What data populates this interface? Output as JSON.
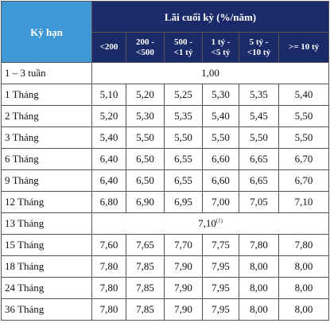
{
  "header": {
    "term": "Kỳ hạn",
    "rate_title": "Lãi cuối kỳ (%/năm)",
    "tiers": [
      "<200",
      "200 -\n<500",
      "500 -\n<1 tỷ",
      "1 tỷ -\n<5 tỷ",
      "5 tỷ -\n<10 tỷ",
      ">= 10 tỷ"
    ]
  },
  "rows": [
    {
      "term": "1 – 3 tuần",
      "value": "1,00"
    },
    {
      "term": "1 Tháng",
      "values": [
        "5,10",
        "5,20",
        "5,25",
        "5,30",
        "5,35",
        "5,40"
      ]
    },
    {
      "term": "2 Tháng",
      "values": [
        "5,20",
        "5,30",
        "5,35",
        "5,40",
        "5,45",
        "5,50"
      ]
    },
    {
      "term": "3 Tháng",
      "values": [
        "5,40",
        "5,50",
        "5,50",
        "5,50",
        "5,50",
        "5,50"
      ]
    },
    {
      "term": "6 Tháng",
      "values": [
        "6,40",
        "6,50",
        "6,55",
        "6,60",
        "6,65",
        "6,70"
      ]
    },
    {
      "term": "9 Tháng",
      "values": [
        "6,40",
        "6,50",
        "6,55",
        "6,60",
        "6,65",
        "6,70"
      ]
    },
    {
      "term": "12 Tháng",
      "values": [
        "6,80",
        "6,90",
        "6,95",
        "7,00",
        "7,05",
        "7,10"
      ]
    },
    {
      "term": "13 Tháng",
      "value": "7,10",
      "note": "(1)"
    },
    {
      "term": "15 Tháng",
      "values": [
        "7,60",
        "7,65",
        "7,70",
        "7,75",
        "7,80",
        "7,80"
      ]
    },
    {
      "term": "18 Tháng",
      "values": [
        "7,80",
        "7,85",
        "7,90",
        "7,95",
        "8,00",
        "8,00"
      ]
    },
    {
      "term": "24 Tháng",
      "values": [
        "7,80",
        "7,85",
        "7,90",
        "7,95",
        "8,00",
        "8,00"
      ]
    },
    {
      "term": "36 Tháng",
      "values": [
        "7,80",
        "7,85",
        "7,90",
        "7,95",
        "8,00",
        "8,00"
      ]
    }
  ]
}
